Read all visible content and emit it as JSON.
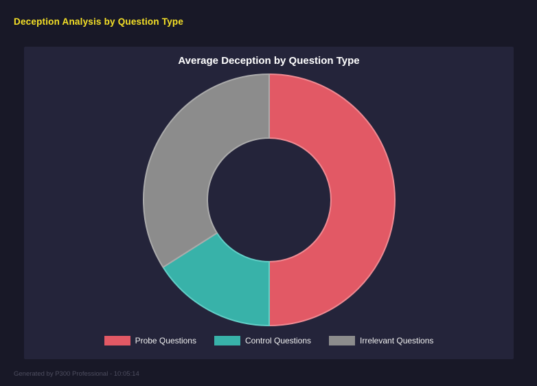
{
  "page": {
    "title": "Deception Analysis by Question Type",
    "footer": "Generated by P300 Professional - 10:05:14"
  },
  "theme": {
    "background": "#181827",
    "panel": "#24243a",
    "header_text": "#f5e027",
    "chart_title_text": "#ffffff",
    "legend_text": "#f0f0f0",
    "footer_text": "#4e4e60"
  },
  "chart_data": {
    "type": "pie",
    "variant": "donut",
    "title": "Average Deception by Question Type",
    "categories": [
      "Probe Questions",
      "Control Questions",
      "Irrelevant Questions"
    ],
    "values": [
      50,
      16,
      34
    ],
    "colors": [
      "#e25965",
      "#38b2a9",
      "#8c8c8c"
    ],
    "border_colors": [
      "#ef8a92",
      "#63cfc7",
      "#ababab"
    ],
    "legend_position": "bottom",
    "inner_radius_ratio": 0.49,
    "start_angle_deg": 0,
    "direction": "clockwise"
  }
}
